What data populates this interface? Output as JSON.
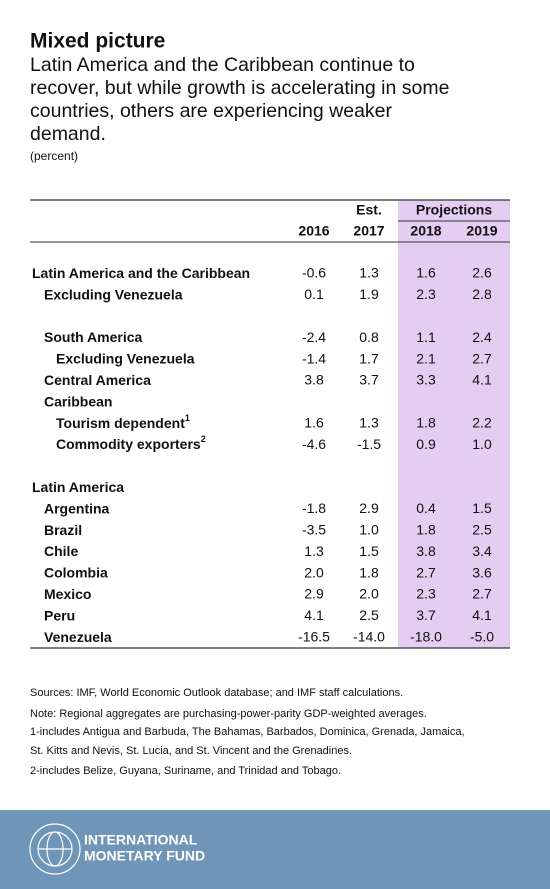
{
  "header": {
    "title": "Mixed picture",
    "subtitle": [
      "Latin America and the Caribbean continue to",
      "recover, but while growth is accelerating in some",
      "countries, others are experiencing weaker",
      "demand."
    ],
    "unit": "(percent)"
  },
  "table": {
    "est_label": "Est.",
    "projections_label": "Projections",
    "years": [
      "2016",
      "2017",
      "2018",
      "2019"
    ],
    "groups": [
      [
        {
          "label": "Latin America and the Caribbean",
          "level": 0,
          "values": [
            "-0.6",
            "1.3",
            "1.6",
            "2.6"
          ]
        },
        {
          "label": "Excluding Venezuela",
          "level": 1,
          "values": [
            "0.1",
            "1.9",
            "2.3",
            "2.8"
          ]
        }
      ],
      [
        {
          "label": "South America",
          "level": 1,
          "values": [
            "-2.4",
            "0.8",
            "1.1",
            "2.4"
          ]
        },
        {
          "label": "Excluding Venezuela",
          "level": 2,
          "values": [
            "-1.4",
            "1.7",
            "2.1",
            "2.7"
          ]
        },
        {
          "label": "Central America",
          "level": 1,
          "values": [
            "3.8",
            "3.7",
            "3.3",
            "4.1"
          ]
        },
        {
          "label": "Caribbean",
          "level": 1
        },
        {
          "label": "Tourism dependent",
          "note": "1",
          "level": 2,
          "values": [
            "1.6",
            "1.3",
            "1.8",
            "2.2"
          ]
        },
        {
          "label": "Commodity exporters",
          "note": "2",
          "level": 2,
          "values": [
            "-4.6",
            "-1.5",
            "0.9",
            "1.0"
          ]
        }
      ],
      [
        {
          "label": "Latin America",
          "level": 0
        },
        {
          "label": "Argentina",
          "level": 1,
          "values": [
            "-1.8",
            "2.9",
            "0.4",
            "1.5"
          ]
        },
        {
          "label": "Brazil",
          "level": 1,
          "values": [
            "-3.5",
            "1.0",
            "1.8",
            "2.5"
          ]
        },
        {
          "label": "Chile",
          "level": 1,
          "values": [
            "1.3",
            "1.5",
            "3.8",
            "3.4"
          ]
        },
        {
          "label": "Colombia",
          "level": 1,
          "values": [
            "2.0",
            "1.8",
            "2.7",
            "3.6"
          ]
        },
        {
          "label": "Mexico",
          "level": 1,
          "values": [
            "2.9",
            "2.0",
            "2.3",
            "2.7"
          ]
        },
        {
          "label": "Peru",
          "level": 1,
          "values": [
            "4.1",
            "2.5",
            "3.7",
            "4.1"
          ]
        },
        {
          "label": "Venezuela",
          "level": 1,
          "values": [
            "-16.5",
            "-14.0",
            "-18.0",
            "-5.0"
          ]
        }
      ]
    ]
  },
  "notes": [
    "Sources: IMF, World Economic Outlook database; and IMF staff calculations.",
    "Note: Regional aggregates are purchasing-power-parity GDP-weighted averages.",
    "1-includes Antigua and Barbuda, The Bahamas, Barbados, Dominica, Grenada, Jamaica,",
    "St. Kitts and Nevis, St. Lucia, and St. Vincent and the Grenadines.",
    "2-includes Belize, Guyana, Suriname, and Trinidad and Tobago."
  ],
  "footer": {
    "org": [
      "INTERNATIONAL",
      "MONETARY FUND"
    ]
  }
}
